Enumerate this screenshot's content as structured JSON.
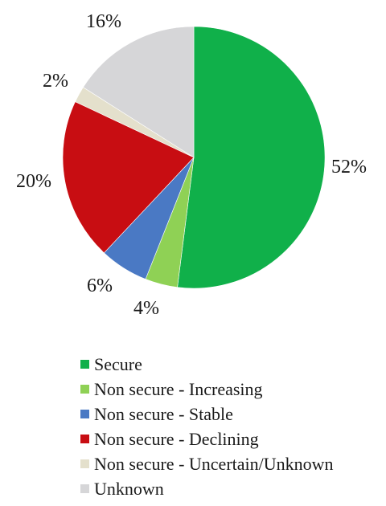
{
  "chart_data": {
    "type": "pie",
    "title": "",
    "start_angle_deg": 0,
    "direction": "clockwise",
    "slices": [
      {
        "name": "Secure",
        "value": 52,
        "label": "52%",
        "color": "#10b04a"
      },
      {
        "name": "Non secure - Increasing",
        "value": 4,
        "label": "4%",
        "color": "#8fd155"
      },
      {
        "name": "Non secure - Stable",
        "value": 6,
        "label": "6%",
        "color": "#4a79c4"
      },
      {
        "name": "Non secure - Declining",
        "value": 20,
        "label": "20%",
        "color": "#c80d12"
      },
      {
        "name": "Non secure - Uncertain/Unknown",
        "value": 2,
        "label": "2%",
        "color": "#e4e0cc"
      },
      {
        "name": "Unknown",
        "value": 16,
        "label": "16%",
        "color": "#d6d6d8"
      }
    ],
    "legend_position": "bottom"
  }
}
